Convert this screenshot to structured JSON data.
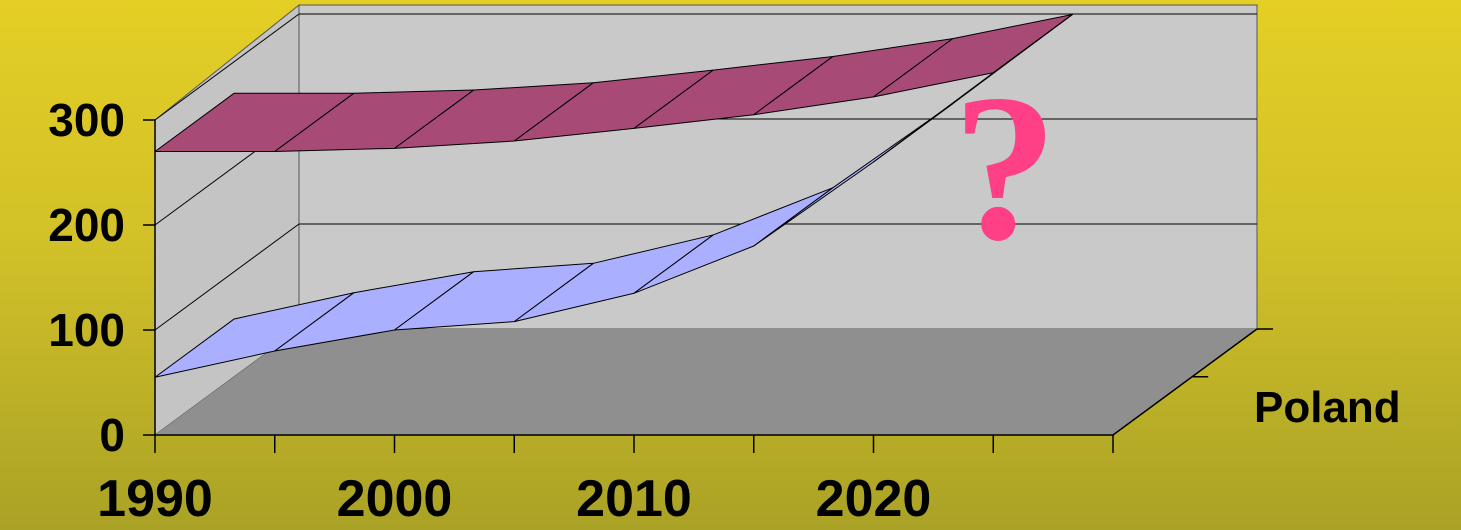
{
  "chart_data": {
    "type": "area",
    "x_tick_labels": [
      "1990",
      "2000",
      "2010",
      "2020"
    ],
    "y_tick_labels": [
      "0",
      "100",
      "200",
      "300"
    ],
    "ylim": [
      0,
      300
    ],
    "grid": true,
    "depth_label": "Poland",
    "annotation": "?",
    "x": [
      1990,
      1995,
      2000,
      2005,
      2010,
      2015,
      2020,
      2025
    ],
    "series": [
      {
        "values": [
          270,
          270,
          273,
          280,
          292,
          305,
          322,
          345
        ],
        "color": "#a84a76"
      },
      {
        "values": [
          55,
          80,
          100,
          108,
          135,
          180,
          260,
          345
        ],
        "color": "#aab0ff"
      }
    ],
    "colors": {
      "back_wall": "#c9c9c9",
      "floor": "#8f8f8f",
      "gridline": "#000000"
    }
  }
}
